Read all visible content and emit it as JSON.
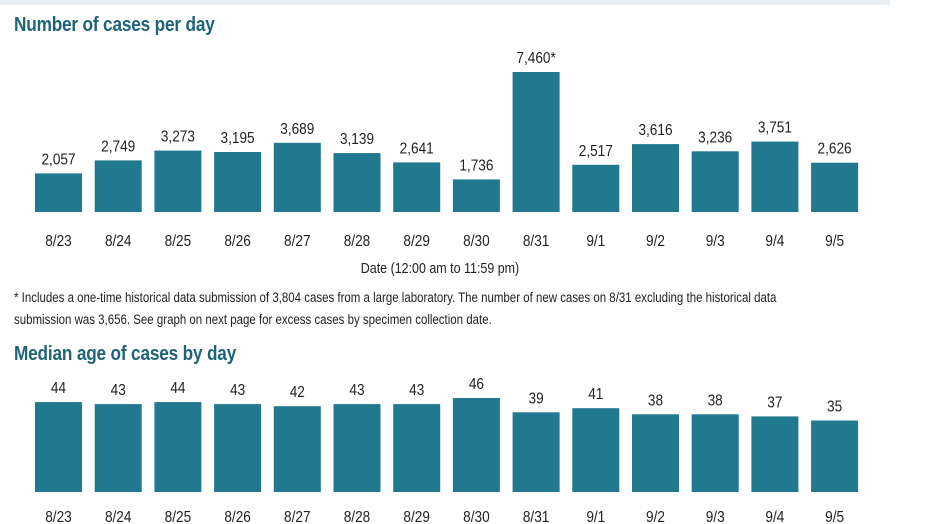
{
  "chart_data": [
    {
      "type": "bar",
      "title": "Number of cases per day",
      "xlabel": "Date (12:00 am to 11:59 pm)",
      "ylabel": "",
      "categories": [
        "8/23",
        "8/24",
        "8/25",
        "8/26",
        "8/27",
        "8/28",
        "8/29",
        "8/30",
        "8/31",
        "9/1",
        "9/2",
        "9/3",
        "9/4",
        "9/5"
      ],
      "values": [
        2057,
        2749,
        3273,
        3195,
        3689,
        3139,
        2641,
        1736,
        7460,
        2517,
        3616,
        3236,
        3751,
        2626
      ],
      "value_labels": [
        "2,057",
        "2,749",
        "3,273",
        "3,195",
        "3,689",
        "3,139",
        "2,641",
        "1,736",
        "7,460*",
        "2,517",
        "3,616",
        "3,236",
        "3,751",
        "2,626"
      ],
      "ylim": [
        0,
        7460
      ],
      "grid": false,
      "footnote_lines": [
        "* Includes a one-time historical data submission of 3,804 cases from a large laboratory. The number of new cases on 8/31 excluding the historical data",
        "submission was 3,656. See graph on next page for excess cases by specimen collection date."
      ]
    },
    {
      "type": "bar",
      "title": "Median age of cases by day",
      "xlabel": "",
      "ylabel": "",
      "categories": [
        "8/23",
        "8/24",
        "8/25",
        "8/26",
        "8/27",
        "8/28",
        "8/29",
        "8/30",
        "8/31",
        "9/1",
        "9/2",
        "9/3",
        "9/4",
        "9/5"
      ],
      "values": [
        44,
        43,
        44,
        43,
        42,
        43,
        43,
        46,
        39,
        41,
        38,
        38,
        37,
        35
      ],
      "value_labels": [
        "44",
        "43",
        "44",
        "43",
        "42",
        "43",
        "43",
        "46",
        "39",
        "41",
        "38",
        "38",
        "37",
        "35"
      ],
      "ylim": [
        0,
        46
      ],
      "grid": false
    }
  ],
  "colors": {
    "bar": "#20798f",
    "title": "#1d6478"
  }
}
